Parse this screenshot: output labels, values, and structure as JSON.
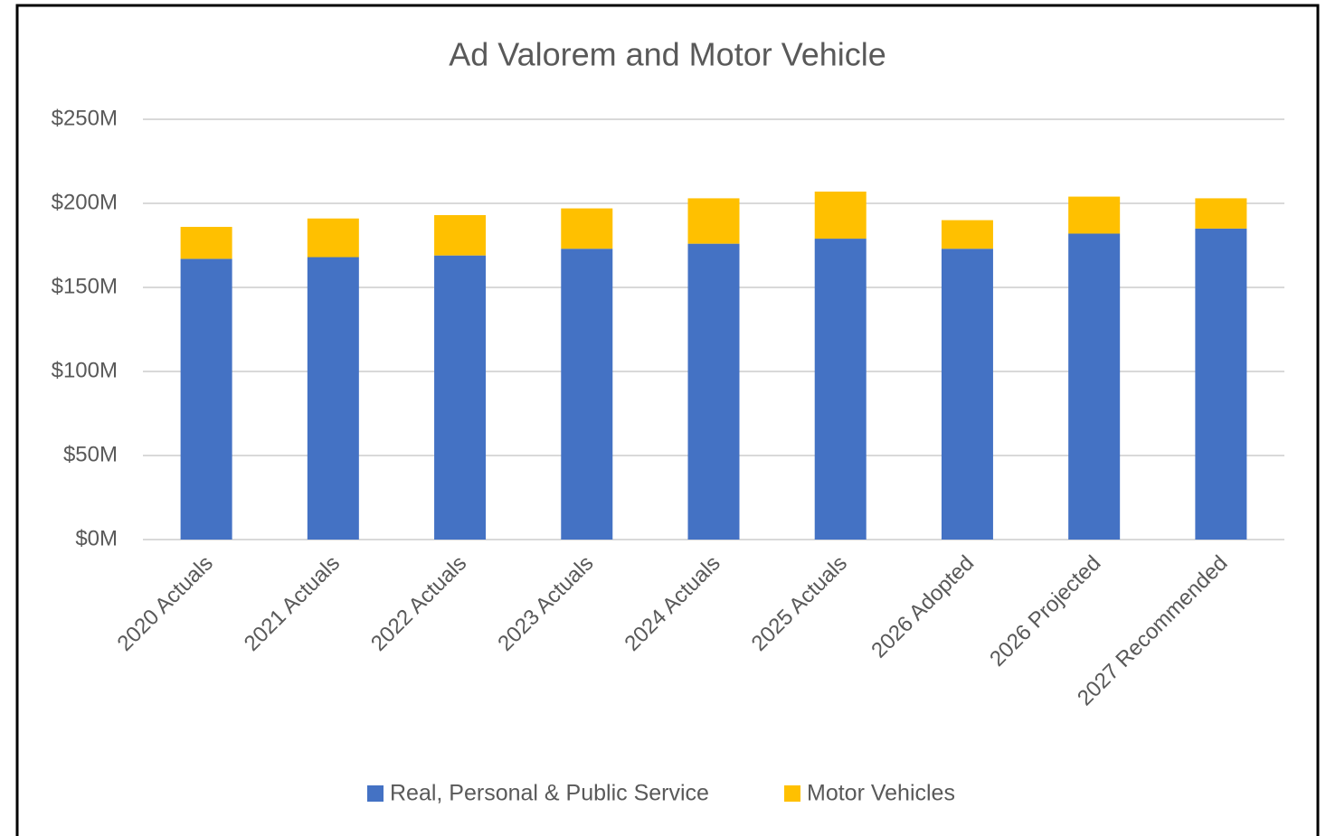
{
  "chart_data": {
    "type": "stacked_bar",
    "title": "Ad Valorem and Motor Vehicle",
    "categories": [
      "2020 Actuals",
      "2021 Actuals",
      "2022 Actuals",
      "2023 Actuals",
      "2024 Actuals",
      "2025 Actuals",
      "2026 Adopted",
      "2026 Projected",
      "2027 Recommended"
    ],
    "series": [
      {
        "name": "Real, Personal & Public Service",
        "color": "#4472c4",
        "values": [
          167,
          168,
          169,
          173,
          176,
          179,
          173,
          182,
          185
        ]
      },
      {
        "name": "Motor Vehicles",
        "color": "#ffc000",
        "values": [
          19,
          23,
          24,
          24,
          27,
          28,
          17,
          22,
          18
        ]
      }
    ],
    "ylim": [
      0,
      250
    ],
    "yticks": [
      {
        "value": 0,
        "label": "$0M"
      },
      {
        "value": 50,
        "label": "$50M"
      },
      {
        "value": 100,
        "label": "$100M"
      },
      {
        "value": 150,
        "label": "$150M"
      },
      {
        "value": 200,
        "label": "$200M"
      },
      {
        "value": 250,
        "label": "$250M"
      }
    ],
    "grid": true,
    "legend": "bottom"
  }
}
